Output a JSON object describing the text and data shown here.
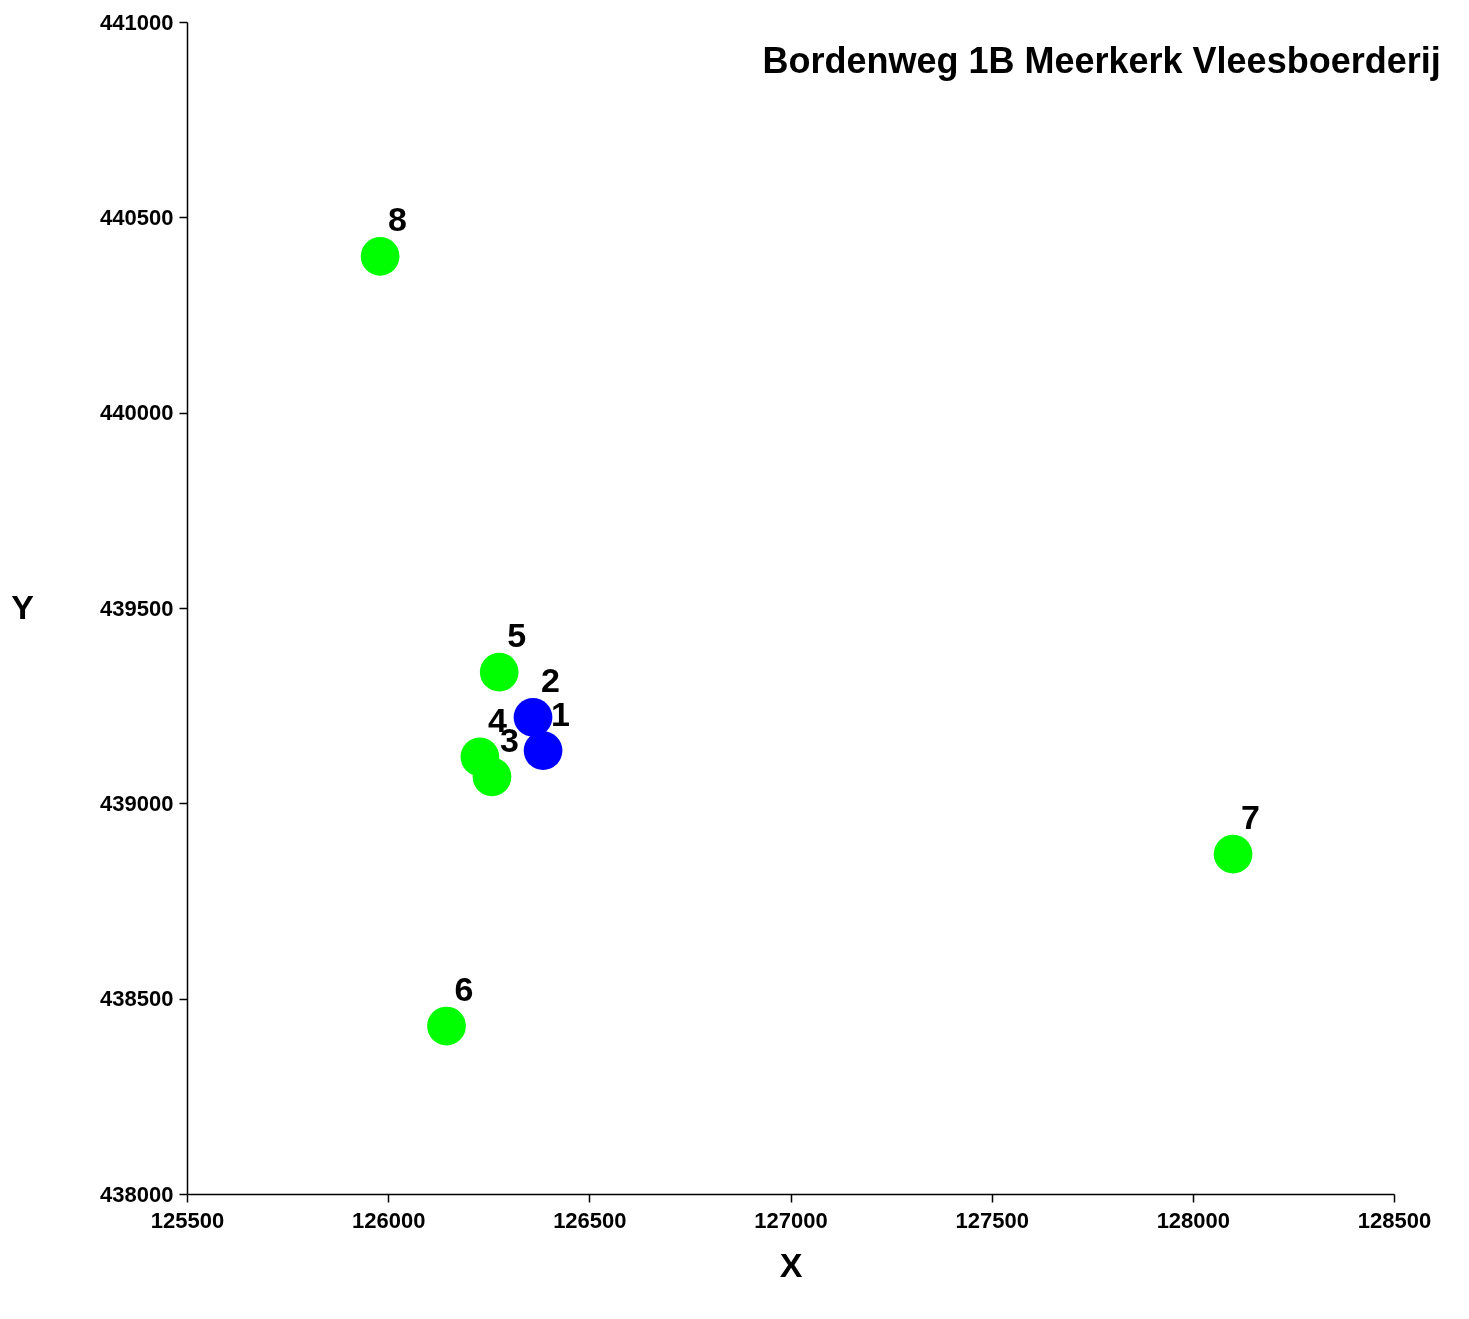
{
  "chart_data": {
    "type": "scatter",
    "title": "Bordenweg 1B Meerkerk Vleesboerderij",
    "xlabel": "X",
    "ylabel": "Y",
    "xlim": [
      125500,
      128500
    ],
    "xticks": [
      125500,
      126000,
      126500,
      127000,
      127500,
      128000,
      128500
    ],
    "ylim": [
      438000,
      441000
    ],
    "yticks": [
      438000,
      438500,
      439000,
      439500,
      440000,
      440500,
      441000
    ],
    "grid": false,
    "legend": false,
    "marker": "circle",
    "series": [
      {
        "color": "#0000ff",
        "x": [
          126385,
          126360
        ],
        "values": [
          439135,
          439220
        ]
      },
      {
        "color": "#00ff00",
        "x": [
          126258,
          126228,
          126276,
          126145,
          128100,
          125980
        ],
        "values": [
          439068,
          439119,
          439336,
          438430,
          438870,
          440400
        ]
      }
    ],
    "annotations": [
      {
        "text": "1",
        "x": 126385,
        "y": 439135
      },
      {
        "text": "2",
        "x": 126360,
        "y": 439220
      },
      {
        "text": "3",
        "x": 126258,
        "y": 439068
      },
      {
        "text": "4",
        "x": 126228,
        "y": 439119
      },
      {
        "text": "5",
        "x": 126276,
        "y": 439336
      },
      {
        "text": "6",
        "x": 126145,
        "y": 438430
      },
      {
        "text": "7",
        "x": 128100,
        "y": 438870
      },
      {
        "text": "8",
        "x": 125980,
        "y": 440400
      }
    ]
  }
}
